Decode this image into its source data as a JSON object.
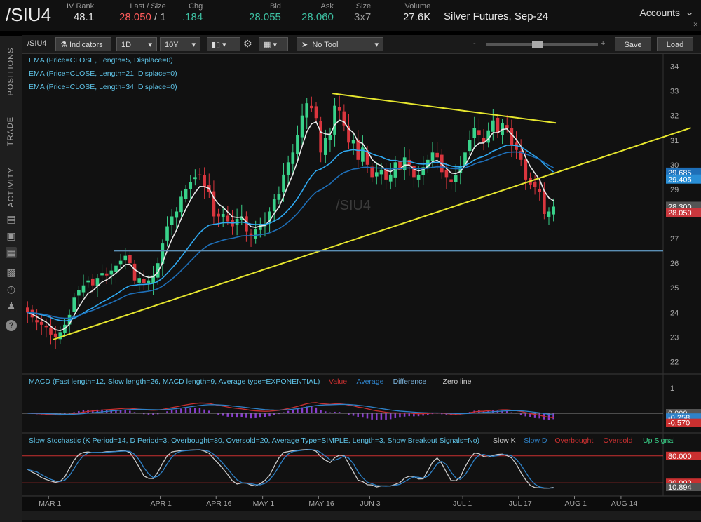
{
  "header": {
    "symbol": "/SIU4",
    "quotes": [
      {
        "label": "IV Rank",
        "value": "48.1",
        "color": "#e8e8e8"
      },
      {
        "label": "Last / Size",
        "value": "28.050",
        "suffix": " / 1",
        "color": "#ff5b5b"
      },
      {
        "label": "Chg",
        "value": ".184",
        "color": "#3ec1a3"
      },
      {
        "label": "Bid",
        "value": "28.055",
        "color": "#3ec1a3"
      },
      {
        "label": "Ask",
        "value": "28.060",
        "color": "#3ec1a3"
      },
      {
        "label": "Size",
        "value": "3x7",
        "color": "#9a9a9a"
      },
      {
        "label": "Volume",
        "value": "27.6K",
        "color": "#e8e8e8"
      }
    ],
    "description": "Silver Futures, Sep-24",
    "accounts_label": "Accounts"
  },
  "sidebar": {
    "tabs": [
      "POSITIONS",
      "TRADE",
      "ACTIVITY"
    ],
    "icons": [
      "document-icon",
      "monitor-icon",
      "chart-icon",
      "grid-icon",
      "history-icon",
      "people-icon",
      "help-icon"
    ]
  },
  "toolbar": {
    "symbol": "/SIU4",
    "indicators_label": "Indicators",
    "aggregation": "1D",
    "range": "10Y",
    "drawing_tool": "No Tool",
    "minus_label": "-",
    "plus_label": "+",
    "save_label": "Save",
    "load_label": "Load"
  },
  "chart_data": {
    "type": "candlestick",
    "watermark": "/SIU4",
    "studies": [
      {
        "label": "EMA (Price=CLOSE, Length=5, Displace=0)",
        "color": "#ffffff"
      },
      {
        "label": "EMA (Price=CLOSE, Length=21, Displace=0)",
        "color": "#2fa8f0"
      },
      {
        "label": "EMA (Price=CLOSE, Length=34, Displace=0)",
        "color": "#1e78c8"
      }
    ],
    "colors": {
      "up": "#39d28a",
      "down": "#d9363e",
      "ema5": "#e8e8e8",
      "ema21": "#2fa8f0",
      "ema34": "#1e6fb8",
      "trendline": "#e6e62e",
      "support": "#5b8fb5"
    },
    "price_axis": {
      "min": 21.5,
      "max": 34.5,
      "ticks": [
        22,
        23,
        24,
        25,
        26,
        27,
        28,
        29,
        30,
        31,
        32,
        33,
        34
      ]
    },
    "x_ticks": [
      "MAR 1",
      "APR 1",
      "APR 16",
      "MAY 1",
      "MAY 16",
      "JUN 3",
      "JUL 1",
      "JUL 17",
      "AUG 1",
      "AUG 14"
    ],
    "x_tick_bars": [
      5,
      29,
      41,
      51,
      63,
      74,
      94,
      106,
      118,
      128
    ],
    "price_labels": [
      {
        "value": "29.685",
        "price": 29.685,
        "bg": "#1e6fb8"
      },
      {
        "value": "29.405",
        "price": 29.405,
        "bg": "#2a8fd6"
      },
      {
        "value": "28.300",
        "price": 28.3,
        "bg": "#555555"
      },
      {
        "value": "28.050",
        "price": 28.05,
        "bg": "#c8373d"
      }
    ],
    "closes": [
      24.0,
      23.8,
      23.6,
      23.5,
      23.4,
      23.1,
      23.0,
      23.2,
      23.5,
      23.9,
      24.6,
      24.9,
      25.1,
      25.3,
      25.1,
      25.4,
      25.6,
      25.5,
      25.7,
      25.9,
      26.1,
      26.3,
      26.0,
      25.3,
      25.4,
      25.2,
      25.3,
      25.5,
      26.0,
      26.8,
      27.5,
      27.9,
      28.1,
      28.7,
      29.0,
      29.3,
      29.5,
      29.6,
      29.1,
      28.9,
      27.9,
      27.9,
      28.0,
      27.7,
      27.5,
      27.8,
      27.9,
      27.3,
      27.1,
      27.4,
      27.6,
      27.6,
      28.1,
      28.6,
      28.8,
      29.6,
      30.1,
      30.5,
      31.2,
      32.0,
      32.5,
      32.3,
      31.9,
      30.5,
      31.1,
      31.2,
      32.4,
      32.2,
      31.6,
      30.9,
      31.0,
      30.2,
      30.7,
      30.0,
      29.5,
      29.7,
      29.8,
      29.4,
      29.6,
      30.1,
      29.8,
      30.3,
      30.0,
      29.5,
      29.6,
      29.9,
      30.2,
      30.5,
      30.3,
      29.7,
      29.5,
      29.3,
      29.6,
      29.9,
      30.5,
      31.0,
      31.5,
      31.2,
      30.9,
      31.4,
      31.8,
      31.3,
      31.7,
      31.5,
      30.8,
      30.6,
      30.2,
      29.4,
      29.2,
      29.1,
      28.9,
      28.0,
      28.1,
      28.3
    ],
    "macd": {
      "study": "MACD (Fast length=12, Slow length=26, MACD length=9, Average type=EXPONENTIAL)",
      "legend": [
        {
          "label": "Value",
          "color": "#c93030"
        },
        {
          "label": "Average",
          "color": "#2f82c8"
        },
        {
          "label": "Difference",
          "color": "#7fb7e0"
        },
        {
          "label": "Zero line",
          "color": "#cccccc"
        }
      ],
      "ticks": [
        "1"
      ],
      "values": [
        {
          "value": "0.000",
          "price": 0.0,
          "bg": "#555555"
        },
        {
          "value": "-0.258",
          "price": -0.258,
          "bg": "#2f82c8"
        },
        {
          "value": "-0.570",
          "price": -0.57,
          "bg": "#c93030"
        }
      ]
    },
    "stochastic": {
      "study": "Slow Stochastic (K Period=14, D Period=3, Overbought=80, Oversold=20, Average Type=SIMPLE, Length=3, Show Breakout Signals=No)",
      "legend": [
        {
          "label": "Slow K",
          "color": "#cccccc"
        },
        {
          "label": "Slow D",
          "color": "#2f82c8"
        },
        {
          "label": "Overbought",
          "color": "#c93030"
        },
        {
          "label": "Oversold",
          "color": "#c93030"
        },
        {
          "label": "Up Signal",
          "color": "#39d28a"
        }
      ],
      "overbought": 80,
      "oversold": 20,
      "values": [
        {
          "value": "80.000",
          "level": 80,
          "bg": "#c93030"
        },
        {
          "value": "20.000",
          "level": 20,
          "bg": "#c93030"
        },
        {
          "value": "10.894",
          "level": 10.894,
          "bg": "#555555"
        }
      ]
    },
    "trendlines": [
      {
        "from": {
          "bar": 6,
          "price": 22.9
        },
        "to": {
          "bar": 143,
          "price": 31.5
        }
      },
      {
        "from": {
          "bar": 66,
          "price": 32.9
        },
        "to": {
          "bar": 114,
          "price": 31.7
        }
      }
    ],
    "support": {
      "price": 26.5,
      "from_bar": 19
    }
  }
}
